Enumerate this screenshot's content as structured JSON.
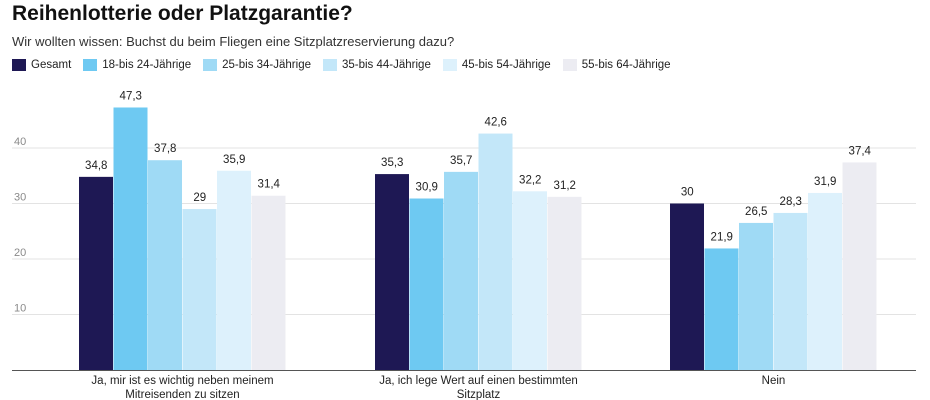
{
  "chart_data": {
    "type": "bar",
    "title": "Reihenlotterie oder Platzgarantie?",
    "subtitle": "Wir wollten wissen: Buchst du beim Fliegen eine Sitzplatzreservierung dazu?",
    "categories": [
      [
        "Ja, mir ist es wichtig neben meinem",
        "Mitreisenden zu sitzen"
      ],
      [
        "Ja, ich lege Wert auf einen bestimmten",
        "Sitzplatz"
      ],
      [
        "Nein"
      ]
    ],
    "series": [
      {
        "name": "Gesamt",
        "color": "#1e1854",
        "values": [
          34.8,
          35.3,
          30
        ],
        "labels": [
          "34,8",
          "35,3",
          "30"
        ]
      },
      {
        "name": "18-bis 24-Jährige",
        "color": "#6ec9f2",
        "values": [
          47.3,
          30.9,
          21.9
        ],
        "labels": [
          "47,3",
          "30,9",
          "21,9"
        ]
      },
      {
        "name": "25-bis 34-Jährige",
        "color": "#9fdaf5",
        "values": [
          37.8,
          35.7,
          26.5
        ],
        "labels": [
          "37,8",
          "35,7",
          "26,5"
        ]
      },
      {
        "name": "35-bis 44-Jährige",
        "color": "#c3e7f9",
        "values": [
          29,
          42.6,
          28.3
        ],
        "labels": [
          "29",
          "42,6",
          "28,3"
        ]
      },
      {
        "name": "45-bis 54-Jährige",
        "color": "#ddf1fc",
        "values": [
          35.9,
          32.2,
          31.9
        ],
        "labels": [
          "35,9",
          "32,2",
          "31,9"
        ]
      },
      {
        "name": "55-bis 64-Jährige",
        "color": "#ececf2",
        "values": [
          31.4,
          31.2,
          37.4
        ],
        "labels": [
          "31,4",
          "31,2",
          "37,4"
        ]
      }
    ],
    "yticks": [
      10,
      20,
      30,
      40
    ],
    "ylim": [
      0,
      50
    ],
    "grid": true,
    "legend": "top-left"
  }
}
